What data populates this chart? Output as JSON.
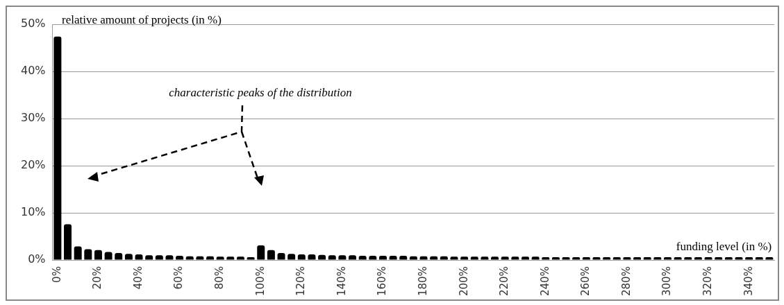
{
  "chart_data": {
    "type": "bar",
    "ylabel": "relative amount of projects (in %)",
    "xlabel": "funding level (in %)",
    "annotations": [
      "characteristic peaks of the distribution"
    ],
    "categories": [
      "0%",
      null,
      null,
      null,
      "20%",
      null,
      null,
      null,
      "40%",
      null,
      null,
      null,
      "60%",
      null,
      null,
      null,
      "80%",
      null,
      null,
      null,
      "100%",
      null,
      null,
      null,
      "120%",
      null,
      null,
      null,
      "140%",
      null,
      null,
      null,
      "160%",
      null,
      null,
      null,
      "180%",
      null,
      null,
      null,
      "200%",
      null,
      null,
      null,
      "220%",
      null,
      null,
      null,
      "240%",
      null,
      null,
      null,
      "260%",
      null,
      null,
      null,
      "280%",
      null,
      null,
      null,
      "300%",
      null,
      null,
      null,
      "320%",
      null,
      null,
      null,
      "340%",
      null,
      null
    ],
    "values": [
      47.4,
      7.6,
      2.9,
      2.3,
      2.1,
      1.7,
      1.5,
      1.3,
      1.2,
      1.0,
      1.0,
      1.0,
      0.9,
      0.8,
      0.8,
      0.8,
      0.7,
      0.7,
      0.7,
      0.6,
      3.1,
      2.1,
      1.5,
      1.3,
      1.2,
      1.2,
      1.1,
      1.0,
      1.0,
      1.0,
      0.9,
      0.9,
      0.9,
      0.9,
      0.9,
      0.8,
      0.8,
      0.8,
      0.8,
      0.7,
      0.7,
      0.7,
      0.7,
      0.7,
      0.7,
      0.7,
      0.7,
      0.7,
      0.6,
      0.6,
      0.6,
      0.6,
      0.6,
      0.6,
      0.6,
      0.6,
      0.6,
      0.6,
      0.6,
      0.6,
      0.6,
      0.6,
      0.6,
      0.6,
      0.6,
      0.6,
      0.6,
      0.6,
      0.6,
      0.6,
      0.6
    ],
    "color": "#000000",
    "ylim": [
      0,
      50
    ],
    "yticks": [
      {
        "value": 0,
        "label": "0%"
      },
      {
        "value": 10,
        "label": "10%"
      },
      {
        "value": 20,
        "label": "20%"
      },
      {
        "value": 30,
        "label": "30%"
      },
      {
        "value": 40,
        "label": "40%"
      },
      {
        "value": 50,
        "label": "50%"
      }
    ],
    "grid": "y",
    "legend": false
  }
}
